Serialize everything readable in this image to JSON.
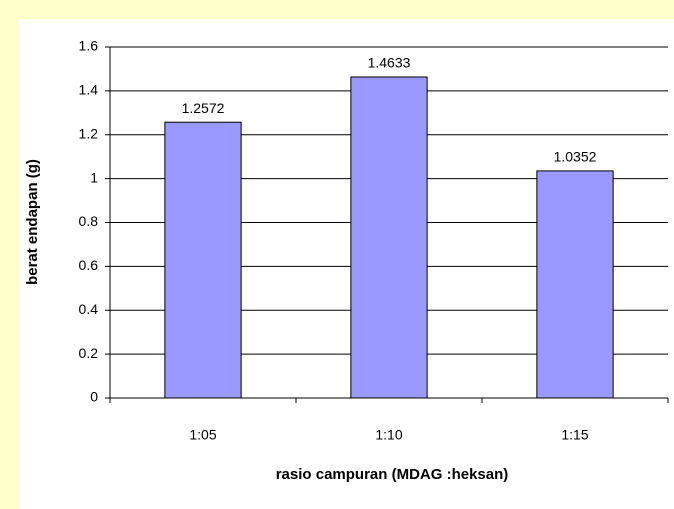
{
  "chart_data": {
    "type": "bar",
    "categories": [
      "1:05",
      "1:10",
      "1:15"
    ],
    "values": [
      1.2572,
      1.4633,
      1.0352
    ],
    "color": "#9999ff",
    "xlabel": "rasio campuran (MDAG :heksan)",
    "ylabel": "berat endapan (g)",
    "ylim": [
      0,
      1.6
    ],
    "yticks": [
      0,
      0.2,
      0.4,
      0.6,
      0.8,
      1,
      1.2,
      1.4,
      1.6
    ],
    "grid": true
  }
}
